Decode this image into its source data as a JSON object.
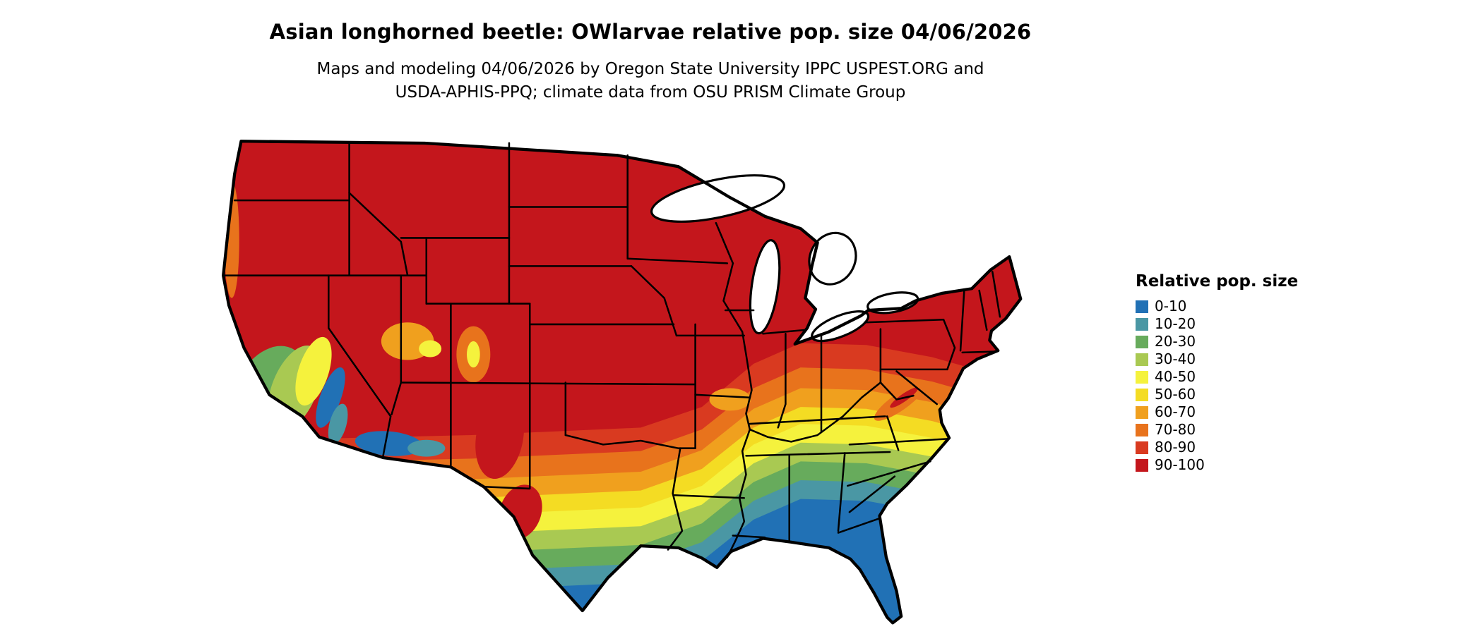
{
  "title": "Asian longhorned beetle: OWlarvae relative pop. size 04/06/2026",
  "subtitle_line1": "Maps and modeling 04/06/2026 by Oregon State University IPPC USPEST.ORG and",
  "subtitle_line2": "USDA-APHIS-PPQ; climate data from OSU PRISM Climate Group",
  "map": {
    "area": "Contiguous United States",
    "style": "raster choropleth with state borders",
    "border_color": "#000000",
    "water_color": "#ffffff"
  },
  "legend": {
    "title": "Relative pop. size",
    "items": [
      {
        "label": "0-10",
        "color": "#2171B5"
      },
      {
        "label": "10-20",
        "color": "#4A97A4"
      },
      {
        "label": "20-30",
        "color": "#67AB5C"
      },
      {
        "label": "30-40",
        "color": "#A9C952"
      },
      {
        "label": "40-50",
        "color": "#F5F23D"
      },
      {
        "label": "50-60",
        "color": "#F4DC23"
      },
      {
        "label": "60-70",
        "color": "#F0A01E"
      },
      {
        "label": "70-80",
        "color": "#E8731C"
      },
      {
        "label": "80-90",
        "color": "#D93A20"
      },
      {
        "label": "90-100",
        "color": "#C4161C"
      }
    ]
  }
}
